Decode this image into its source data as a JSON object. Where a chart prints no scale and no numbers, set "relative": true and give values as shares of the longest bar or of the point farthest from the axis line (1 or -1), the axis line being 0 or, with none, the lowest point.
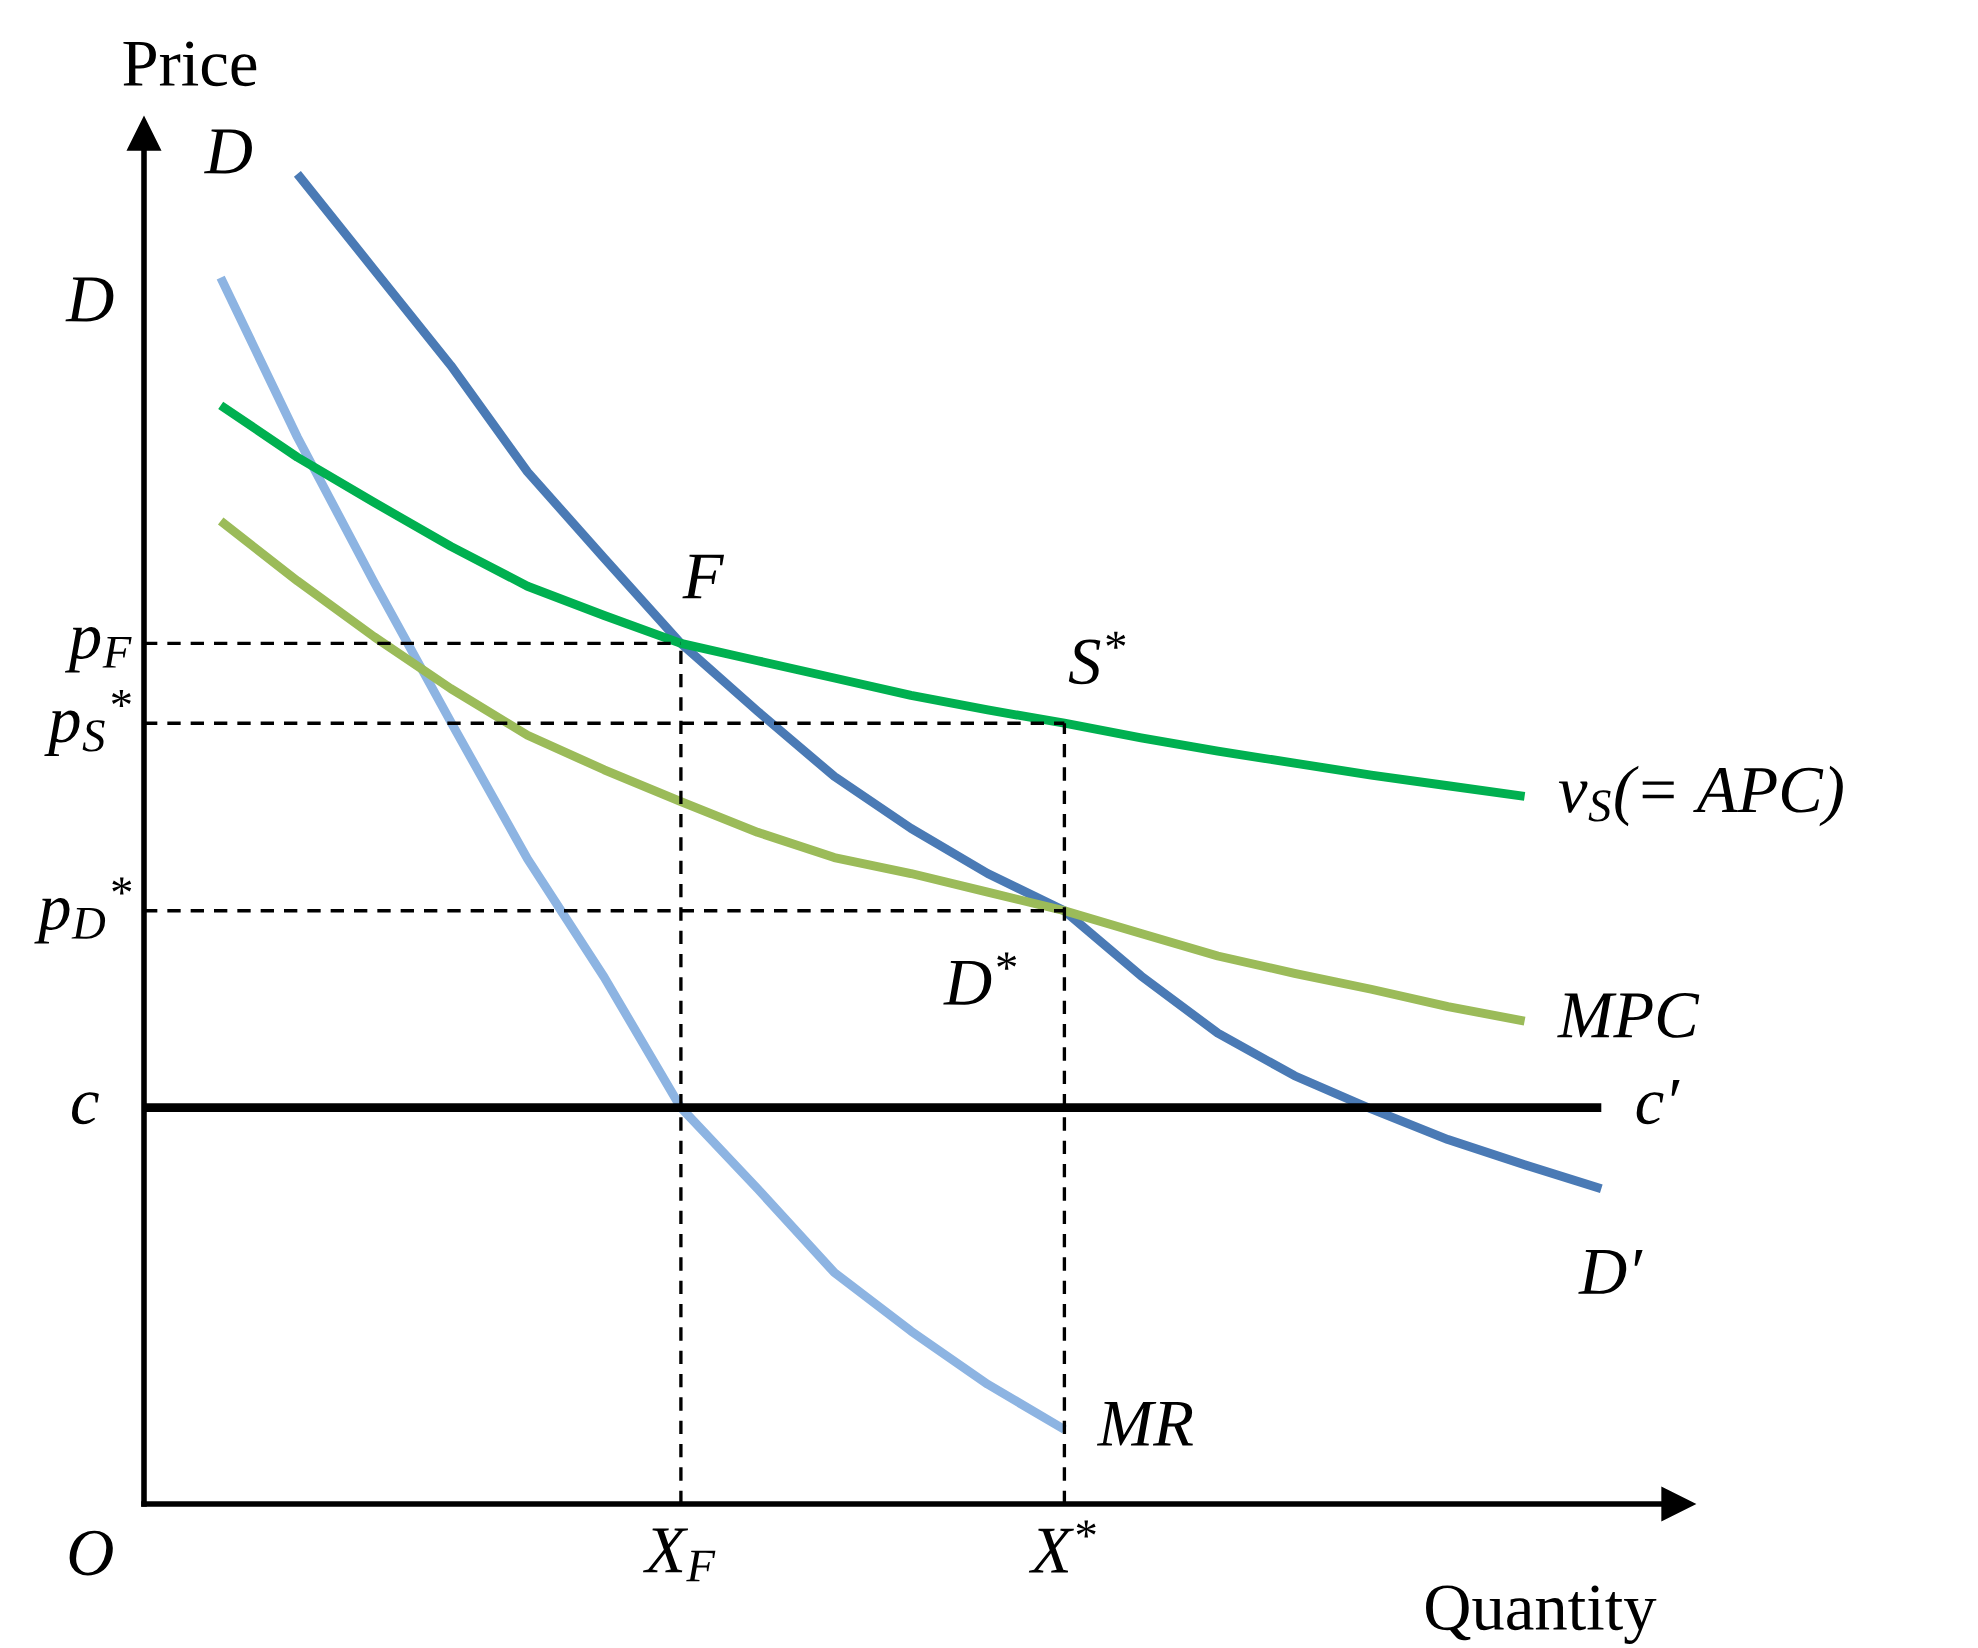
{
  "chart_data": {
    "type": "line",
    "relative": true,
    "xlabel": "Quantity",
    "ylabel": "Price",
    "categories": [
      null,
      null,
      null,
      null,
      null,
      null,
      null,
      "X$_{F}$",
      null,
      null,
      null,
      null,
      "X$^{*}$",
      null,
      null,
      null,
      null,
      null,
      null,
      null,
      null
    ],
    "grid": false,
    "legend": false,
    "marker": "none",
    "series": [
      {
        "name": "MR",
        "color": "#8db4e2",
        "values": [
          null,
          0.922,
          0.802,
          0.693,
          0.588,
          0.485,
          0.396,
          0.298,
          0.237,
          0.174,
          0.13,
          0.09,
          0.056,
          null,
          null,
          null,
          null,
          null,
          null,
          null,
          null
        ]
      },
      {
        "name": "D′",
        "color": "#4a7ab5",
        "values": [
          null,
          null,
          1.0,
          0.928,
          0.856,
          0.776,
          0.711,
          0.647,
          0.596,
          0.547,
          0.508,
          0.474,
          0.446,
          0.397,
          0.354,
          0.322,
          0.297,
          0.274,
          0.255,
          0.237,
          null
        ]
      },
      {
        "name": "v$_{S}$(= APC)",
        "color": "#00b050",
        "values": [
          null,
          0.826,
          0.787,
          0.753,
          0.72,
          0.69,
          0.668,
          0.647,
          0.634,
          0.621,
          0.608,
          0.597,
          0.587,
          0.576,
          0.566,
          0.557,
          0.548,
          0.54,
          0.532,
          null,
          null
        ]
      },
      {
        "name": "MPC",
        "color": "#9bbb59",
        "values": [
          null,
          0.739,
          0.694,
          0.652,
          0.613,
          0.578,
          0.552,
          0.528,
          0.505,
          0.486,
          0.474,
          0.46,
          0.446,
          0.429,
          0.412,
          0.399,
          0.387,
          0.374,
          0.363,
          null,
          null
        ]
      },
      {
        "name": "c′",
        "color": "#000000",
        "values": [
          0.298,
          0.298,
          0.298,
          0.298,
          0.298,
          0.298,
          0.298,
          0.298,
          0.298,
          0.298,
          0.298,
          0.298,
          0.298,
          0.298,
          0.298,
          0.298,
          0.298,
          0.298,
          0.298,
          0.298,
          null
        ]
      }
    ],
    "ref_lines": [
      {
        "axis": "y",
        "value": 0.647,
        "label": "p$_{F}$",
        "color": "#000000",
        "line_style": "dashed"
      },
      {
        "axis": "y",
        "value": 0.587,
        "label": "p$_{S}$$^{*}$",
        "color": "#000000",
        "line_style": "dashed"
      },
      {
        "axis": "y",
        "value": 0.446,
        "label": "p$_{D}$$^{*}$",
        "color": "#000000",
        "line_style": "dashed"
      },
      {
        "axis": "x",
        "value": "X$_{F}$",
        "color": "#000000",
        "line_style": "dashed"
      },
      {
        "axis": "x",
        "value": "X$^{*}$",
        "color": "#000000",
        "line_style": "dashed"
      }
    ],
    "annotations": [
      "O",
      "D",
      "D",
      "c",
      {
        "text": "F",
        "x": "X$_{F}$",
        "y": 0.647
      },
      {
        "text": "S$^{*}$",
        "x": "X$^{*}$",
        "y": 0.587
      },
      {
        "text": "D$^{*}$",
        "x": "X$^{*}$",
        "y": 0.446
      }
    ]
  }
}
